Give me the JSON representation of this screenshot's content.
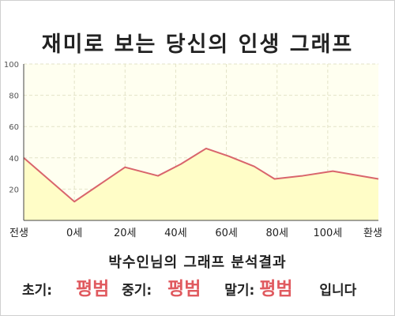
{
  "title": "재미로 보는 당신의 인생 그래프",
  "summary": "박수인님의 그래프 분석결과",
  "result": {
    "early_label": "초기:",
    "early_value": "평범",
    "middle_label": "중기:",
    "middle_value": "평범",
    "late_label": "말기:",
    "late_value": "평범",
    "suffix": "입니다"
  },
  "colors": {
    "line": "#d9656c",
    "fill": "#fffdc7",
    "plot_bg": "#fffff0",
    "highlight": "#e05a5f"
  },
  "chart_data": {
    "type": "area",
    "title": "",
    "xlabel": "",
    "ylabel": "",
    "ylim": [
      0,
      100
    ],
    "yticks": [
      20,
      40,
      60,
      80,
      100
    ],
    "grid": true,
    "x_tick_labels": [
      "전생",
      "0세",
      "20세",
      "40세",
      "60세",
      "80세",
      "100세",
      "환생"
    ],
    "x_tick_index": [
      0,
      1,
      2,
      3,
      4,
      5,
      6,
      7
    ],
    "x": [
      0,
      1,
      2,
      2.65,
      3.1,
      3.6,
      4.05,
      4.55,
      4.95,
      5.5,
      6.1,
      7
    ],
    "values": [
      40,
      12,
      34,
      28.5,
      36,
      46,
      41,
      34.5,
      26.5,
      28.5,
      31.5,
      26.5
    ]
  }
}
